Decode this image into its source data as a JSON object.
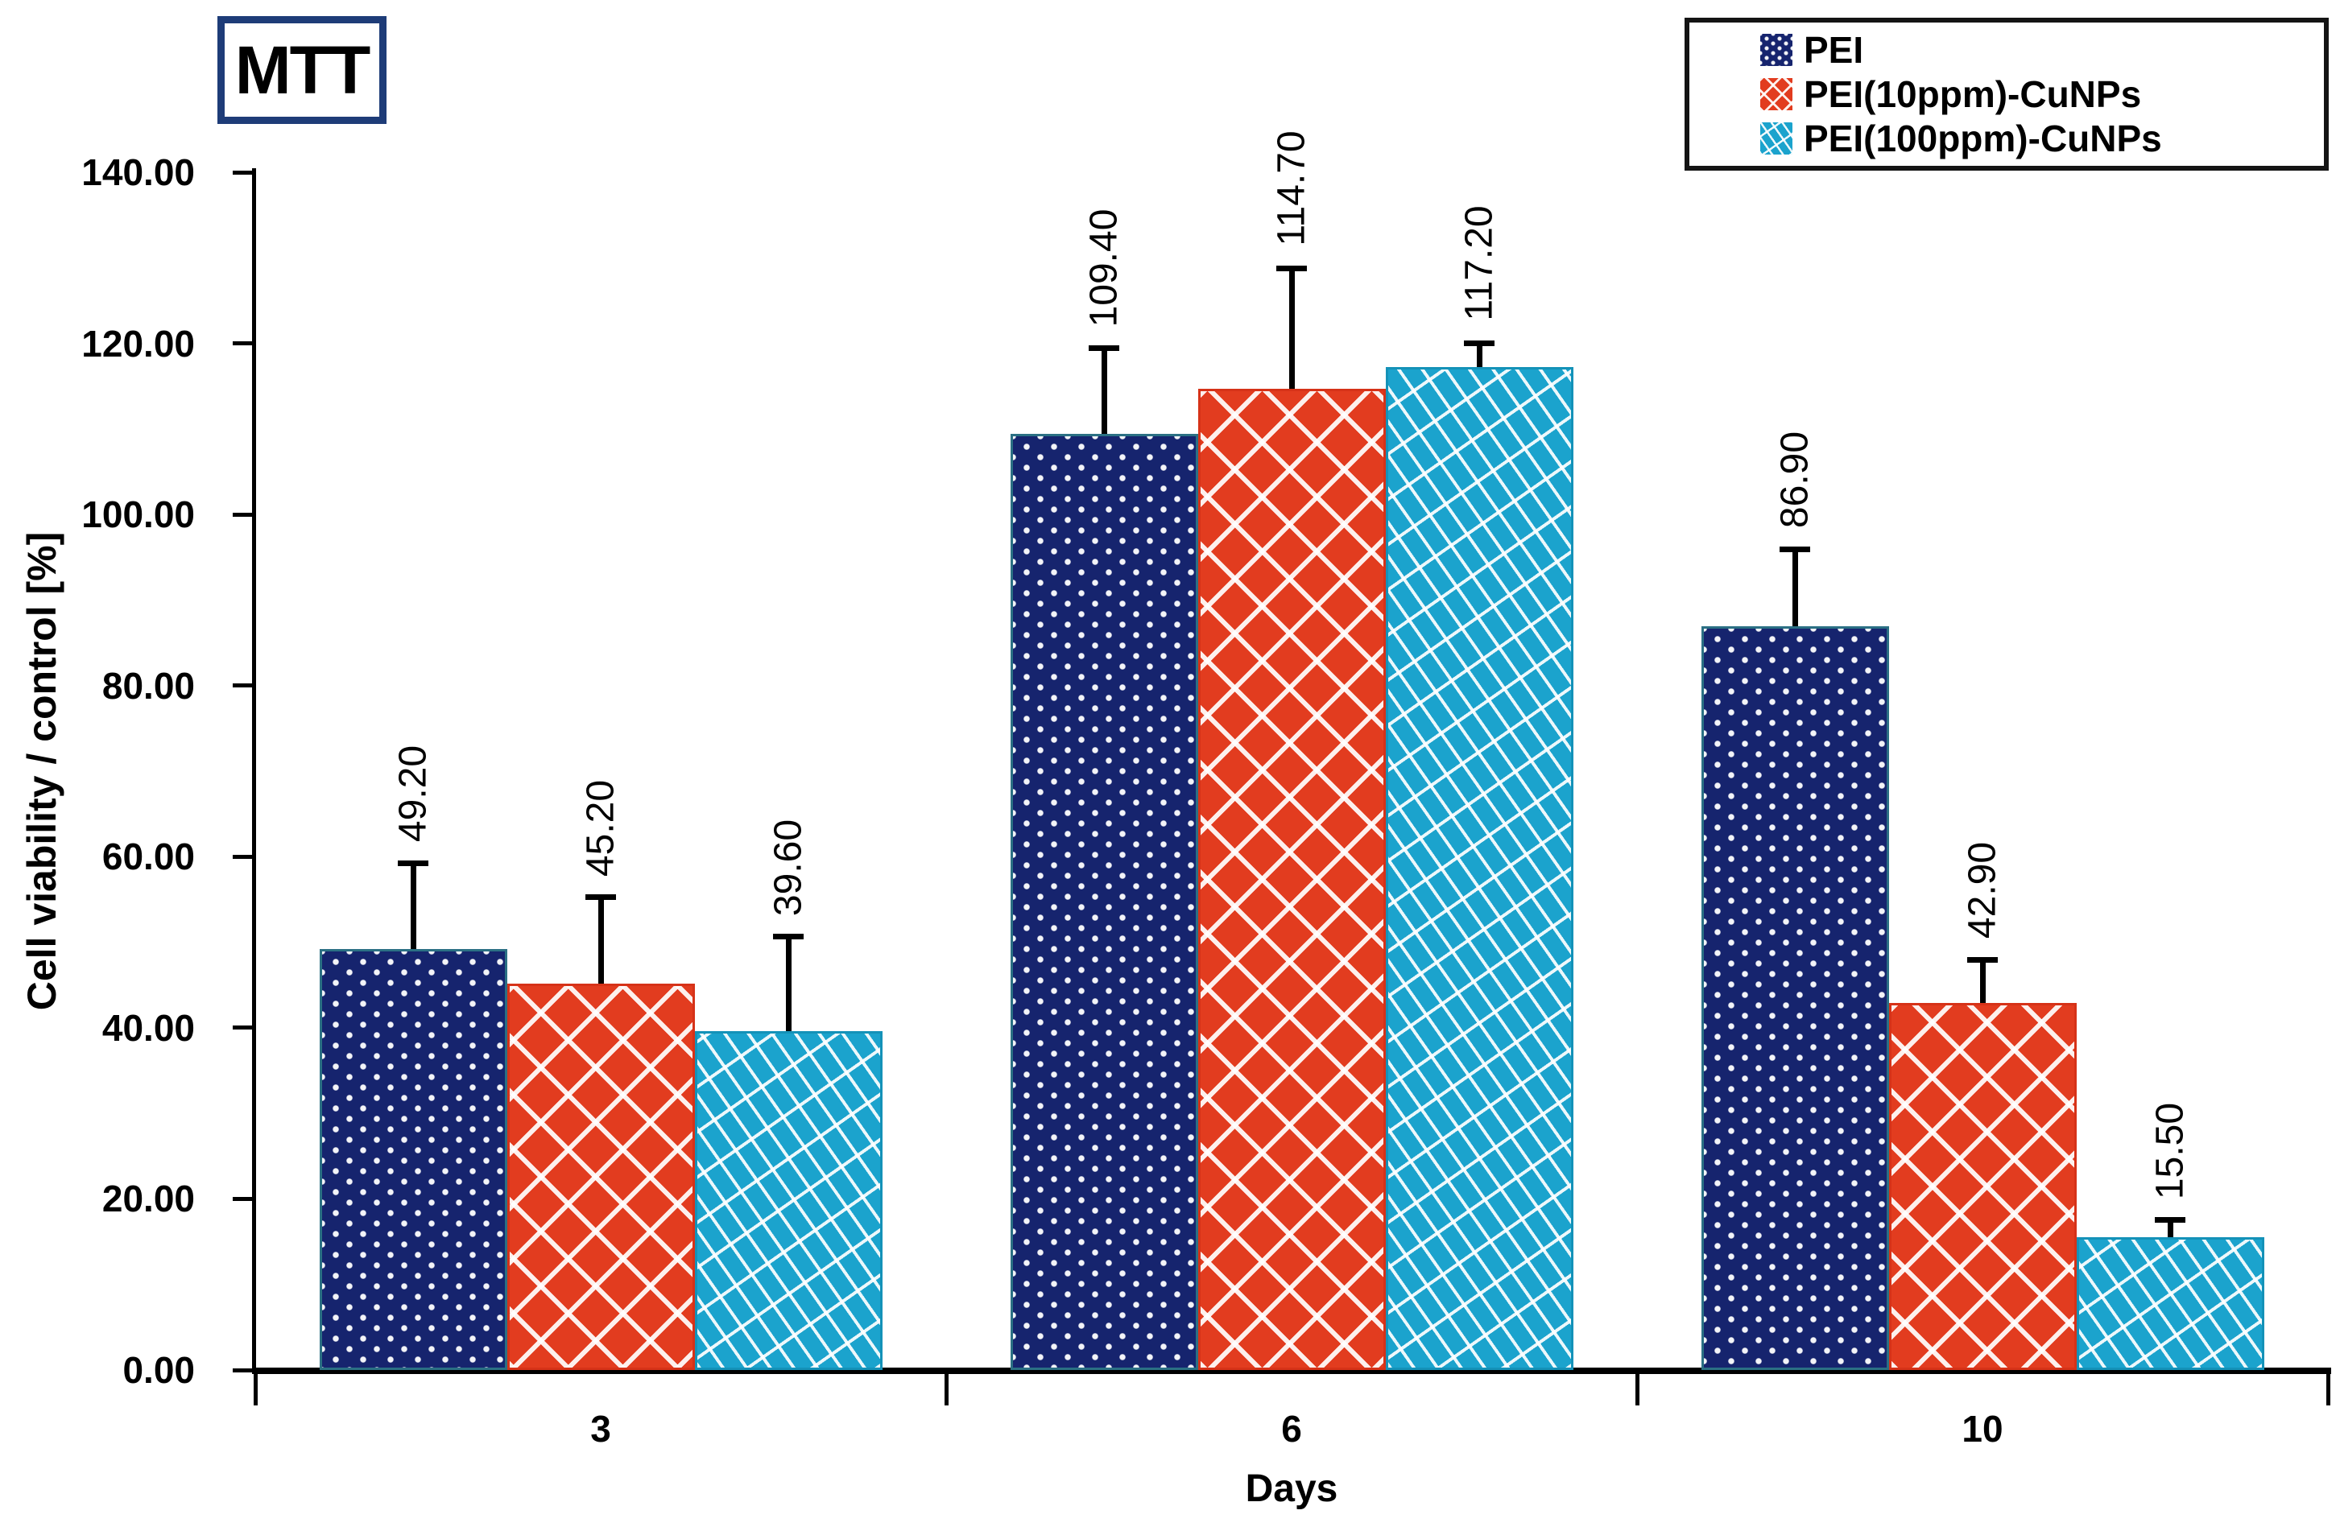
{
  "chart_data": {
    "type": "bar",
    "title": "MTT",
    "xlabel": "Days",
    "ylabel": "Cell viability / control [%]",
    "categories": [
      "3",
      "6",
      "10"
    ],
    "ylim": [
      0,
      140
    ],
    "ytick_step": 20,
    "ytick_labels": [
      "0.00",
      "20.00",
      "40.00",
      "60.00",
      "80.00",
      "100.00",
      "120.00",
      "140.00"
    ],
    "grid": false,
    "legend_position": "top-right",
    "value_label_decimals": 2,
    "value_label_rotation_deg": -90,
    "axis_color": "#000000",
    "series": [
      {
        "name": "PEI",
        "color": "#16246e",
        "border_color": "#2b7084",
        "pattern": "chevron-dots",
        "values": [
          49.2,
          109.4,
          86.9
        ],
        "errors": [
          10.0,
          10.0,
          9.0
        ]
      },
      {
        "name": "PEI(10ppm)-CuNPs",
        "color": "#e23c1f",
        "border_color": "#d63218",
        "pattern": "diamond-crosshatch",
        "values": [
          45.2,
          114.7,
          42.9
        ],
        "errors": [
          10.0,
          14.0,
          5.0
        ]
      },
      {
        "name": "PEI(100ppm)-CuNPs",
        "color": "#1ba3cd",
        "border_color": "#1492b8",
        "pattern": "diagonal-lattice",
        "values": [
          39.6,
          117.2,
          15.5
        ],
        "errors": [
          11.0,
          2.8,
          2.0
        ]
      }
    ]
  }
}
